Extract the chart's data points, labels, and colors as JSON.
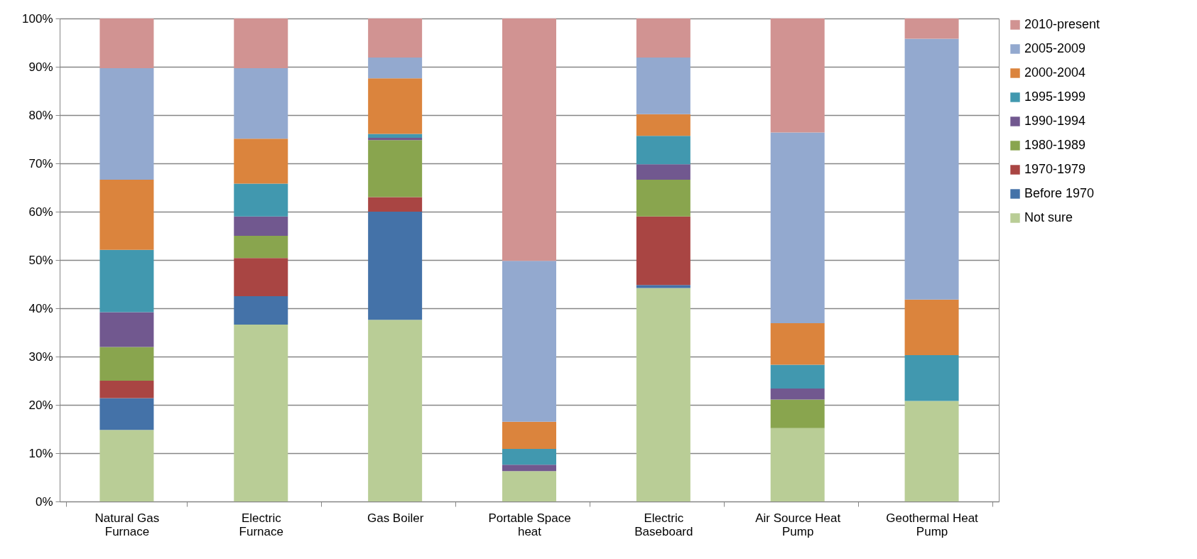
{
  "chart_data": {
    "type": "bar",
    "stacked": true,
    "categories": [
      "Natural Gas Furnace",
      "Electric Furnace",
      "Gas Boiler",
      "Portable Space heat",
      "Electric Baseboard",
      "Air Source Heat Pump",
      "Geothermal Heat Pump"
    ],
    "series": [
      {
        "name": "Not sure",
        "color": "#b9cd96",
        "values": [
          14.8,
          36.6,
          37.6,
          6.3,
          44.2,
          15.2,
          20.8
        ]
      },
      {
        "name": "Before 1970",
        "color": "#4472a8",
        "values": [
          6.6,
          5.9,
          22.4,
          null,
          0.6,
          null,
          null
        ]
      },
      {
        "name": "1970-1979",
        "color": "#a94543",
        "values": [
          3.6,
          7.9,
          3.0,
          null,
          14.2,
          null,
          null
        ]
      },
      {
        "name": "1980-1989",
        "color": "#89a54e",
        "values": [
          7.0,
          4.6,
          11.8,
          null,
          7.6,
          5.9,
          null
        ]
      },
      {
        "name": "1990-1994",
        "color": "#71588f",
        "values": [
          7.2,
          4.0,
          0.5,
          1.3,
          3.2,
          2.3,
          null
        ]
      },
      {
        "name": "1995-1999",
        "color": "#4198af",
        "values": [
          12.9,
          6.8,
          0.8,
          3.3,
          5.9,
          4.9,
          9.5
        ]
      },
      {
        "name": "2000-2004",
        "color": "#db843d",
        "values": [
          14.5,
          9.3,
          11.5,
          5.6,
          4.5,
          8.6,
          11.5
        ]
      },
      {
        "name": "2005-2009",
        "color": "#93a9cf",
        "values": [
          23.1,
          14.6,
          4.3,
          33.3,
          11.7,
          39.5,
          54.0
        ]
      },
      {
        "name": "2010-present",
        "color": "#d19392",
        "values": [
          10.3,
          10.3,
          8.1,
          50.2,
          8.1,
          23.6,
          4.2
        ]
      }
    ],
    "ylim": [
      0,
      100
    ],
    "yticks": [
      {
        "value": 0,
        "label": "0%"
      },
      {
        "value": 10,
        "label": "10%"
      },
      {
        "value": 20,
        "label": "20%"
      },
      {
        "value": 30,
        "label": "30%"
      },
      {
        "value": 40,
        "label": "40%"
      },
      {
        "value": 50,
        "label": "50%"
      },
      {
        "value": 60,
        "label": "60%"
      },
      {
        "value": 70,
        "label": "70%"
      },
      {
        "value": 80,
        "label": "80%"
      },
      {
        "value": 90,
        "label": "90%"
      },
      {
        "value": 100,
        "label": "100%"
      }
    ],
    "grid": "y",
    "legend": "right"
  }
}
